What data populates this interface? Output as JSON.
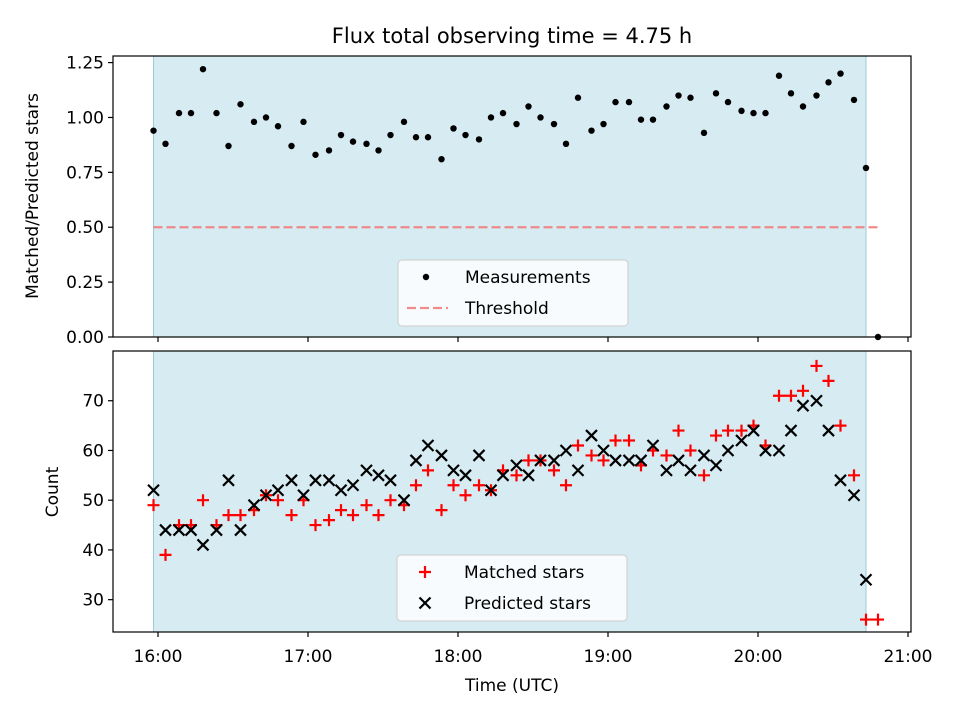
{
  "chart_data": [
    {
      "type": "scatter",
      "title": "Flux total observing time = 4.75 h",
      "xlabel": "",
      "ylabel": "Matched/Predicted stars",
      "x_unit": "hours (UTC)",
      "xlim": [
        15.7,
        21.02
      ],
      "ylim": [
        0.0,
        1.28
      ],
      "yticks": [
        0.0,
        0.25,
        0.5,
        0.75,
        1.0,
        1.25
      ],
      "ytick_labels": [
        "0.00",
        "0.25",
        "0.50",
        "0.75",
        "1.00",
        "1.25"
      ],
      "shaded_span": [
        15.97,
        20.72
      ],
      "threshold": 0.5,
      "legend": {
        "location": "lower center",
        "entries": [
          "Measurements",
          "Threshold"
        ]
      },
      "series": [
        {
          "name": "Measurements",
          "color": "#000000",
          "x": [
            15.97,
            16.05,
            16.14,
            16.22,
            16.3,
            16.39,
            16.47,
            16.55,
            16.64,
            16.72,
            16.8,
            16.89,
            16.97,
            17.05,
            17.14,
            17.22,
            17.3,
            17.39,
            17.47,
            17.55,
            17.64,
            17.72,
            17.8,
            17.89,
            17.97,
            18.05,
            18.14,
            18.22,
            18.3,
            18.39,
            18.47,
            18.55,
            18.64,
            18.72,
            18.8,
            18.89,
            18.97,
            19.05,
            19.14,
            19.22,
            19.3,
            19.39,
            19.47,
            19.55,
            19.64,
            19.72,
            19.8,
            19.89,
            19.97,
            20.05,
            20.14,
            20.22,
            20.3,
            20.39,
            20.47,
            20.55,
            20.64,
            20.72,
            20.8
          ],
          "y": [
            0.94,
            0.88,
            1.02,
            1.02,
            1.22,
            1.02,
            0.87,
            1.06,
            0.98,
            1.0,
            0.96,
            0.87,
            0.98,
            0.83,
            0.85,
            0.92,
            0.89,
            0.88,
            0.85,
            0.92,
            0.98,
            0.91,
            0.91,
            0.81,
            0.95,
            0.92,
            0.9,
            1.0,
            1.02,
            0.97,
            1.05,
            1.0,
            0.97,
            0.88,
            1.09,
            0.94,
            0.97,
            1.07,
            1.07,
            0.99,
            0.99,
            1.05,
            1.1,
            1.09,
            0.93,
            1.11,
            1.07,
            1.03,
            1.02,
            1.02,
            1.19,
            1.11,
            1.05,
            1.1,
            1.16,
            1.2,
            1.08,
            0.77,
            0.0
          ]
        },
        {
          "name": "Threshold",
          "color": "#f08080",
          "style": "dashed",
          "x": [
            15.97,
            20.8
          ],
          "y": [
            0.5,
            0.5
          ]
        }
      ]
    },
    {
      "type": "scatter",
      "title": "",
      "xlabel": "Time (UTC)",
      "ylabel": "Count",
      "x_unit": "hours (UTC)",
      "xlim": [
        15.7,
        21.02
      ],
      "ylim": [
        23.5,
        80.0
      ],
      "yticks": [
        30,
        40,
        50,
        60,
        70
      ],
      "ytick_labels": [
        "30",
        "40",
        "50",
        "60",
        "70"
      ],
      "xticks": [
        16,
        17,
        18,
        19,
        20,
        21
      ],
      "xtick_labels": [
        "16:00",
        "17:00",
        "18:00",
        "19:00",
        "20:00",
        "21:00"
      ],
      "shaded_span": [
        15.97,
        20.72
      ],
      "legend": {
        "location": "lower center",
        "entries": [
          "Matched stars",
          "Predicted stars"
        ]
      },
      "series": [
        {
          "name": "Matched stars",
          "color": "#ff0000",
          "marker": "+",
          "x": [
            15.97,
            16.05,
            16.14,
            16.22,
            16.3,
            16.39,
            16.47,
            16.55,
            16.64,
            16.72,
            16.8,
            16.89,
            16.97,
            17.05,
            17.14,
            17.22,
            17.3,
            17.39,
            17.47,
            17.55,
            17.64,
            17.72,
            17.8,
            17.89,
            17.97,
            18.05,
            18.14,
            18.22,
            18.3,
            18.39,
            18.47,
            18.55,
            18.64,
            18.72,
            18.8,
            18.89,
            18.97,
            19.05,
            19.14,
            19.22,
            19.3,
            19.39,
            19.47,
            19.55,
            19.64,
            19.72,
            19.8,
            19.89,
            19.97,
            20.05,
            20.14,
            20.22,
            20.3,
            20.39,
            20.47,
            20.55,
            20.64,
            20.72,
            20.8
          ],
          "y": [
            49,
            39,
            45,
            45,
            50,
            45,
            47,
            47,
            48,
            51,
            50,
            47,
            50,
            45,
            46,
            48,
            47,
            49,
            47,
            50,
            49,
            53,
            56,
            48,
            53,
            51,
            53,
            52,
            56,
            55,
            58,
            58,
            56,
            53,
            61,
            59,
            58,
            62,
            62,
            57,
            60,
            59,
            64,
            60,
            55,
            63,
            64,
            64,
            65,
            61,
            71,
            71,
            72,
            77,
            74,
            65,
            55,
            26,
            26
          ]
        },
        {
          "name": "Predicted stars",
          "color": "#000000",
          "marker": "x",
          "x": [
            15.97,
            16.05,
            16.14,
            16.22,
            16.3,
            16.39,
            16.47,
            16.55,
            16.64,
            16.72,
            16.8,
            16.89,
            16.97,
            17.05,
            17.14,
            17.22,
            17.3,
            17.39,
            17.47,
            17.55,
            17.64,
            17.72,
            17.8,
            17.89,
            17.97,
            18.05,
            18.14,
            18.22,
            18.3,
            18.39,
            18.47,
            18.55,
            18.64,
            18.72,
            18.8,
            18.89,
            18.97,
            19.05,
            19.14,
            19.22,
            19.3,
            19.39,
            19.47,
            19.55,
            19.64,
            19.72,
            19.8,
            19.89,
            19.97,
            20.05,
            20.14,
            20.22,
            20.3,
            20.39,
            20.47,
            20.55,
            20.64,
            20.72
          ],
          "y": [
            52,
            44,
            44,
            44,
            41,
            44,
            54,
            44,
            49,
            51,
            52,
            54,
            51,
            54,
            54,
            52,
            53,
            56,
            55,
            54,
            50,
            58,
            61,
            59,
            56,
            55,
            59,
            52,
            55,
            57,
            55,
            58,
            58,
            60,
            56,
            63,
            60,
            58,
            58,
            58,
            61,
            56,
            58,
            56,
            59,
            57,
            60,
            62,
            64,
            60,
            60,
            64,
            69,
            70,
            64,
            54,
            51,
            34
          ]
        }
      ]
    }
  ]
}
